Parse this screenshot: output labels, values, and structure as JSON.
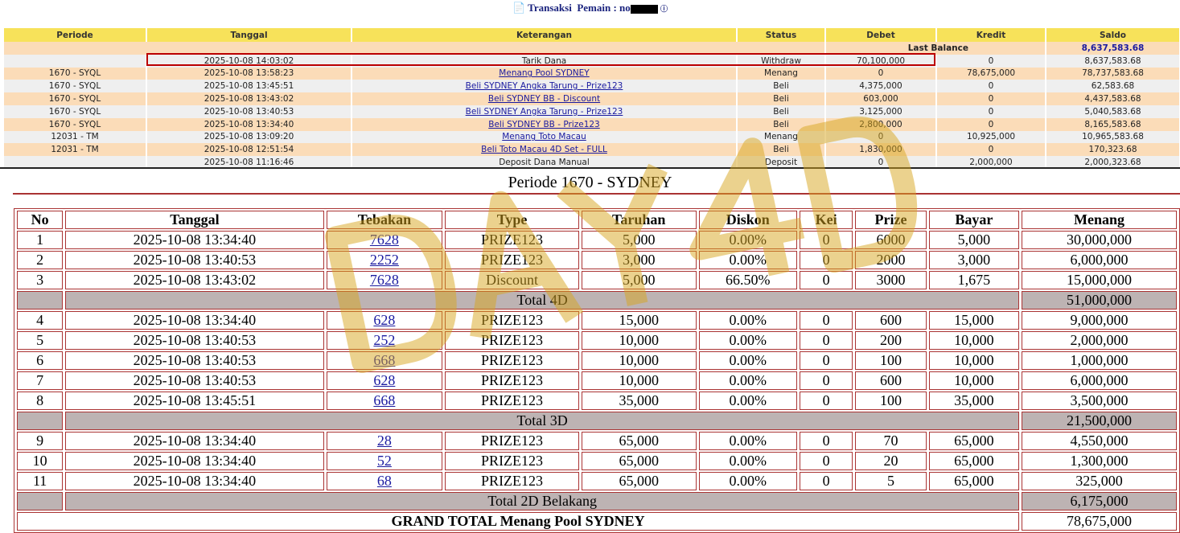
{
  "header": {
    "icon": "document-icon",
    "transaksi": "Transaksi",
    "pemain_label": "Pemain : no",
    "info_icon": "info-icon"
  },
  "trx": {
    "columns": [
      "Periode",
      "Tanggal",
      "Keterangan",
      "Status",
      "Debet",
      "Kredit",
      "Saldo"
    ],
    "last_balance_label": "Last Balance",
    "last_balance": "8,637,583.68",
    "rows": [
      [
        "",
        "2025-10-08 14:03:02",
        "Tarik Dana",
        "Withdraw",
        "70,100,000",
        "0",
        "8,637,583.68",
        false
      ],
      [
        "1670 - SYQL",
        "2025-10-08 13:58:23",
        "Menang Pool SYDNEY",
        "Menang",
        "0",
        "78,675,000",
        "78,737,583.68",
        true
      ],
      [
        "1670 - SYQL",
        "2025-10-08 13:45:51",
        "Beli SYDNEY Angka Tarung - Prize123",
        "Beli",
        "4,375,000",
        "0",
        "62,583.68",
        true
      ],
      [
        "1670 - SYQL",
        "2025-10-08 13:43:02",
        "Beli SYDNEY BB - Discount",
        "Beli",
        "603,000",
        "0",
        "4,437,583.68",
        true
      ],
      [
        "1670 - SYQL",
        "2025-10-08 13:40:53",
        "Beli SYDNEY Angka Tarung - Prize123",
        "Beli",
        "3,125,000",
        "0",
        "5,040,583.68",
        true
      ],
      [
        "1670 - SYQL",
        "2025-10-08 13:34:40",
        "Beli SYDNEY BB - Prize123",
        "Beli",
        "2,800,000",
        "0",
        "8,165,583.68",
        true
      ],
      [
        "12031 - TM",
        "2025-10-08 13:09:20",
        "Menang Toto Macau",
        "Menang",
        "0",
        "10,925,000",
        "10,965,583.68",
        true
      ],
      [
        "12031 - TM",
        "2025-10-08 12:51:54",
        "Beli Toto Macau 4D Set - FULL",
        "Beli",
        "1,830,000",
        "0",
        "170,323.68",
        true
      ],
      [
        "",
        "2025-10-08 11:16:46",
        "Deposit Dana Manual",
        "Deposit",
        "0",
        "2,000,000",
        "2,000,323.68",
        false
      ]
    ]
  },
  "periode_title": "Periode 1670 - SYDNEY",
  "detail": {
    "columns": [
      "No",
      "Tanggal",
      "Tebakan",
      "Type",
      "Taruhan",
      "Diskon",
      "Kei",
      "Prize",
      "Bayar",
      "Menang"
    ],
    "rows": [
      [
        "1",
        "2025-10-08 13:34:40",
        "7628",
        "PRIZE123",
        "5,000",
        "0.00%",
        "0",
        "6000",
        "5,000",
        "30,000,000"
      ],
      [
        "2",
        "2025-10-08 13:40:53",
        "2252",
        "PRIZE123",
        "3,000",
        "0.00%",
        "0",
        "2000",
        "3,000",
        "6,000,000"
      ],
      [
        "3",
        "2025-10-08 13:43:02",
        "7628",
        "Discount",
        "5,000",
        "66.50%",
        "0",
        "3000",
        "1,675",
        "15,000,000"
      ],
      {
        "total": "Total 4D",
        "value": "51,000,000"
      },
      [
        "4",
        "2025-10-08 13:34:40",
        "628",
        "PRIZE123",
        "15,000",
        "0.00%",
        "0",
        "600",
        "15,000",
        "9,000,000"
      ],
      [
        "5",
        "2025-10-08 13:40:53",
        "252",
        "PRIZE123",
        "10,000",
        "0.00%",
        "0",
        "200",
        "10,000",
        "2,000,000"
      ],
      [
        "6",
        "2025-10-08 13:40:53",
        "668",
        "PRIZE123",
        "10,000",
        "0.00%",
        "0",
        "100",
        "10,000",
        "1,000,000"
      ],
      [
        "7",
        "2025-10-08 13:40:53",
        "628",
        "PRIZE123",
        "10,000",
        "0.00%",
        "0",
        "600",
        "10,000",
        "6,000,000"
      ],
      [
        "8",
        "2025-10-08 13:45:51",
        "668",
        "PRIZE123",
        "35,000",
        "0.00%",
        "0",
        "100",
        "35,000",
        "3,500,000"
      ],
      {
        "total": "Total 3D",
        "value": "21,500,000"
      },
      [
        "9",
        "2025-10-08 13:34:40",
        "28",
        "PRIZE123",
        "65,000",
        "0.00%",
        "0",
        "70",
        "65,000",
        "4,550,000"
      ],
      [
        "10",
        "2025-10-08 13:34:40",
        "52",
        "PRIZE123",
        "65,000",
        "0.00%",
        "0",
        "20",
        "65,000",
        "1,300,000"
      ],
      [
        "11",
        "2025-10-08 13:34:40",
        "68",
        "PRIZE123",
        "65,000",
        "0.00%",
        "0",
        "5",
        "65,000",
        "325,000"
      ],
      {
        "total": "Total 2D Belakang",
        "value": "6,175,000"
      }
    ],
    "grand_total_label": "GRAND TOTAL  Menang Pool SYDNEY",
    "grand_total": "78,675,000"
  },
  "watermark": "DAY4D"
}
